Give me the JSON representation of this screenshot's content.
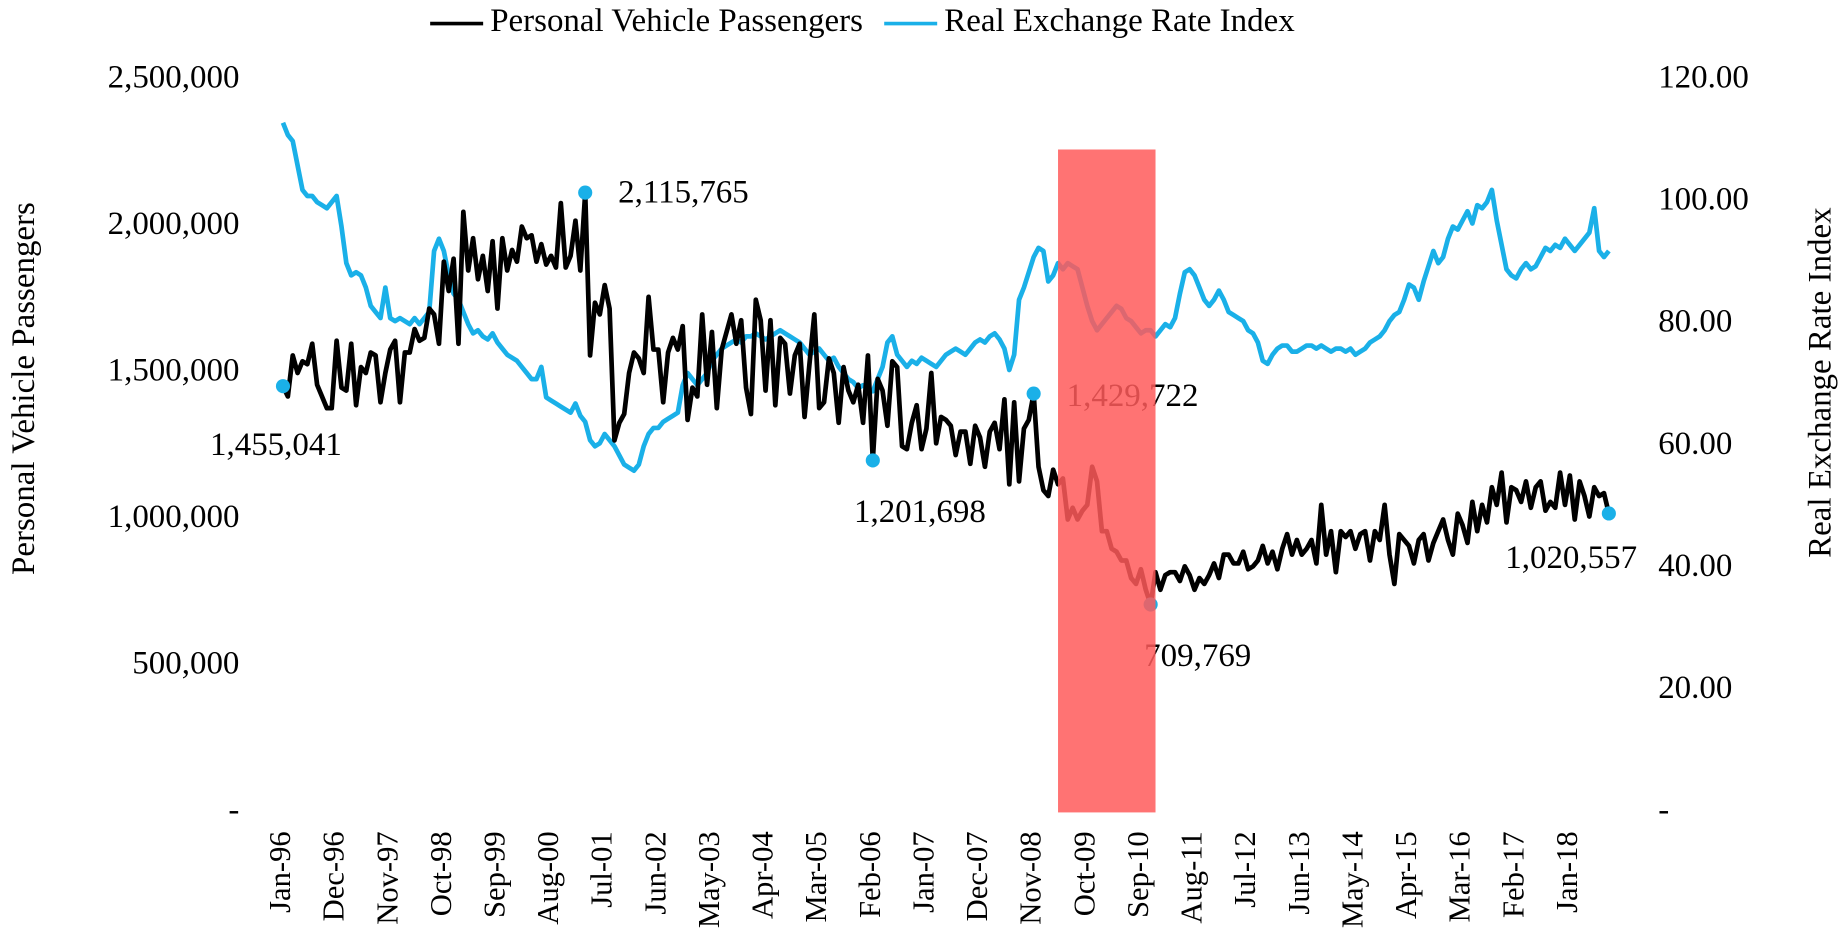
{
  "chart_data": {
    "type": "line",
    "legend": "top",
    "y_label": "Personal Vehicle Passengers",
    "y2_label": "Real Exchange Rate Index",
    "ylim": [
      0,
      2500000
    ],
    "yticks": [
      {
        "value": 0,
        "label": "-"
      },
      {
        "value": 500000,
        "label": "500,000"
      },
      {
        "value": 1000000,
        "label": "1,000,000"
      },
      {
        "value": 1500000,
        "label": "1,500,000"
      },
      {
        "value": 2000000,
        "label": "2,000,000"
      },
      {
        "value": 2500000,
        "label": "2,500,000"
      }
    ],
    "y2lim": [
      0,
      120
    ],
    "y2ticks": [
      {
        "value": 0,
        "label": "-"
      },
      {
        "value": 20,
        "label": "20.00"
      },
      {
        "value": 40,
        "label": "40.00"
      },
      {
        "value": 60,
        "label": "60.00"
      },
      {
        "value": 80,
        "label": "80.00"
      },
      {
        "value": 100,
        "label": "100.00"
      },
      {
        "value": 120,
        "label": "120.00"
      }
    ],
    "highlight": {
      "from": 159,
      "to": 179,
      "top": 2263000,
      "color": "#ff5a5a"
    },
    "categories": [
      "Jan-96",
      null,
      null,
      null,
      null,
      null,
      null,
      null,
      null,
      null,
      null,
      "Dec-96",
      null,
      null,
      null,
      null,
      null,
      null,
      null,
      null,
      null,
      null,
      "Nov-97",
      null,
      null,
      null,
      null,
      null,
      null,
      null,
      null,
      null,
      null,
      "Oct-98",
      null,
      null,
      null,
      null,
      null,
      null,
      null,
      null,
      null,
      null,
      "Sep-99",
      null,
      null,
      null,
      null,
      null,
      null,
      null,
      null,
      null,
      null,
      "Aug-00",
      null,
      null,
      null,
      null,
      null,
      null,
      null,
      null,
      null,
      null,
      "Jul-01",
      null,
      null,
      null,
      null,
      null,
      null,
      null,
      null,
      null,
      null,
      "Jun-02",
      null,
      null,
      null,
      null,
      null,
      null,
      null,
      null,
      null,
      null,
      "May-03",
      null,
      null,
      null,
      null,
      null,
      null,
      null,
      null,
      null,
      null,
      "Apr-04",
      null,
      null,
      null,
      null,
      null,
      null,
      null,
      null,
      null,
      null,
      "Mar-05",
      null,
      null,
      null,
      null,
      null,
      null,
      null,
      null,
      null,
      null,
      "Feb-06",
      null,
      null,
      null,
      null,
      null,
      null,
      null,
      null,
      null,
      null,
      "Jan-07",
      null,
      null,
      null,
      null,
      null,
      null,
      null,
      null,
      null,
      null,
      "Dec-07",
      null,
      null,
      null,
      null,
      null,
      null,
      null,
      null,
      null,
      null,
      "Nov-08",
      null,
      null,
      null,
      null,
      null,
      null,
      null,
      null,
      null,
      null,
      "Oct-09",
      null,
      null,
      null,
      null,
      null,
      null,
      null,
      null,
      null,
      null,
      "Sep-10",
      null,
      null,
      null,
      null,
      null,
      null,
      null,
      null,
      null,
      null,
      "Aug-11",
      null,
      null,
      null,
      null,
      null,
      null,
      null,
      null,
      null,
      null,
      "Jul-12",
      null,
      null,
      null,
      null,
      null,
      null,
      null,
      null,
      null,
      null,
      "Jun-13",
      null,
      null,
      null,
      null,
      null,
      null,
      null,
      null,
      null,
      null,
      "May-14",
      null,
      null,
      null,
      null,
      null,
      null,
      null,
      null,
      null,
      null,
      "Apr-15",
      null,
      null,
      null,
      null,
      null,
      null,
      null,
      null,
      null,
      null,
      "Mar-16",
      null,
      null,
      null,
      null,
      null,
      null,
      null,
      null,
      null,
      null,
      "Feb-17",
      null,
      null,
      null,
      null,
      null,
      null,
      null,
      null,
      null,
      null,
      "Jan-18",
      null,
      null,
      null,
      null,
      null,
      null,
      null,
      null
    ],
    "series": [
      {
        "name": "Personal Vehicle Passengers",
        "color": "#000000",
        "marker_color": "#1ab0e8",
        "axis": "y",
        "values": [
          1455041,
          1420000,
          1560000,
          1500000,
          1540000,
          1530000,
          1600000,
          1460000,
          1420000,
          1380000,
          1380000,
          1610000,
          1450000,
          1440000,
          1600000,
          1390000,
          1520000,
          1500000,
          1570000,
          1560000,
          1400000,
          1500000,
          1580000,
          1610000,
          1400000,
          1570000,
          1570000,
          1650000,
          1610000,
          1620000,
          1720000,
          1700000,
          1600000,
          1880000,
          1780000,
          1890000,
          1600000,
          2050000,
          1850000,
          1960000,
          1820000,
          1900000,
          1780000,
          1950000,
          1720000,
          1960000,
          1850000,
          1920000,
          1880000,
          2000000,
          1960000,
          1970000,
          1880000,
          1940000,
          1870000,
          1900000,
          1860000,
          2080000,
          1860000,
          1900000,
          2020000,
          1850000,
          2115765,
          1560000,
          1740000,
          1700000,
          1800000,
          1720000,
          1270000,
          1330000,
          1360000,
          1500000,
          1570000,
          1550000,
          1500000,
          1760000,
          1580000,
          1580000,
          1400000,
          1570000,
          1620000,
          1580000,
          1660000,
          1340000,
          1450000,
          1420000,
          1700000,
          1460000,
          1640000,
          1380000,
          1580000,
          1640000,
          1700000,
          1600000,
          1680000,
          1450000,
          1360000,
          1750000,
          1680000,
          1440000,
          1680000,
          1390000,
          1620000,
          1600000,
          1430000,
          1560000,
          1600000,
          1350000,
          1530000,
          1700000,
          1380000,
          1400000,
          1550000,
          1500000,
          1330000,
          1520000,
          1440000,
          1400000,
          1460000,
          1330000,
          1560000,
          1201698,
          1480000,
          1440000,
          1320000,
          1540000,
          1520000,
          1250000,
          1240000,
          1330000,
          1390000,
          1240000,
          1310000,
          1500000,
          1260000,
          1350000,
          1340000,
          1320000,
          1220000,
          1300000,
          1300000,
          1190000,
          1320000,
          1280000,
          1180000,
          1300000,
          1330000,
          1240000,
          1410000,
          1120000,
          1400000,
          1130000,
          1310000,
          1340000,
          1429722,
          1180000,
          1100000,
          1080000,
          1170000,
          1120000,
          1140000,
          1000000,
          1040000,
          1000000,
          1030000,
          1050000,
          1180000,
          1130000,
          960000,
          960000,
          900000,
          890000,
          860000,
          860000,
          800000,
          780000,
          830000,
          760000,
          709769,
          820000,
          760000,
          810000,
          820000,
          820000,
          790000,
          840000,
          810000,
          760000,
          800000,
          780000,
          810000,
          850000,
          800000,
          880000,
          880000,
          850000,
          850000,
          890000,
          830000,
          840000,
          860000,
          910000,
          850000,
          890000,
          830000,
          900000,
          950000,
          880000,
          930000,
          880000,
          900000,
          930000,
          850000,
          1050000,
          880000,
          960000,
          820000,
          960000,
          940000,
          960000,
          900000,
          950000,
          960000,
          860000,
          960000,
          930000,
          1050000,
          880000,
          780000,
          950000,
          930000,
          910000,
          850000,
          930000,
          950000,
          860000,
          920000,
          960000,
          1000000,
          930000,
          880000,
          1020000,
          980000,
          920000,
          1060000,
          960000,
          1050000,
          990000,
          1110000,
          1050000,
          1160000,
          990000,
          1110000,
          1100000,
          1060000,
          1130000,
          1040000,
          1110000,
          1130000,
          1030000,
          1060000,
          1040000,
          1160000,
          1050000,
          1150000,
          1000000,
          1130000,
          1080000,
          1010000,
          1110000,
          1080000,
          1090000,
          1020557
        ],
        "value_labels": [
          "1,455,041",
          null,
          null,
          null,
          null,
          null,
          null,
          null,
          null,
          null,
          null,
          null,
          null,
          null,
          null,
          null,
          null,
          null,
          null,
          null,
          null,
          null,
          null,
          null,
          null,
          null,
          null,
          null,
          null,
          null,
          null,
          null,
          null,
          null,
          null,
          null,
          null,
          null,
          null,
          null,
          null,
          null,
          null,
          null,
          null,
          null,
          null,
          null,
          null,
          null,
          null,
          null,
          null,
          null,
          null,
          null,
          null,
          null,
          null,
          null,
          null,
          null,
          "2,115,765",
          null,
          null,
          null,
          null,
          null,
          null,
          null,
          null,
          null,
          null,
          null,
          null,
          null,
          null,
          null,
          null,
          null,
          null,
          null,
          null,
          null,
          null,
          null,
          null,
          null,
          null,
          null,
          null,
          null,
          null,
          null,
          null,
          null,
          null,
          null,
          null,
          null,
          null,
          null,
          null,
          null,
          null,
          null,
          null,
          null,
          null,
          null,
          null,
          null,
          null,
          null,
          null,
          null,
          null,
          null,
          null,
          null,
          null,
          "1,201,698",
          null,
          null,
          null,
          null,
          null,
          null,
          null,
          null,
          null,
          null,
          null,
          null,
          null,
          null,
          null,
          null,
          null,
          null,
          null,
          null,
          null,
          null,
          null,
          null,
          null,
          null,
          null,
          null,
          null,
          null,
          null,
          null,
          "1,429,722",
          null,
          null,
          null,
          null,
          null,
          null,
          null,
          null,
          null,
          null,
          null,
          null,
          null,
          null,
          null,
          null,
          null,
          null,
          null,
          null,
          null,
          null,
          null,
          "709,769",
          null,
          null,
          null,
          null,
          null,
          null,
          null,
          null,
          null,
          null,
          null,
          null,
          null,
          null,
          null,
          null,
          null,
          null,
          null,
          null,
          null,
          null,
          null,
          null,
          null,
          null,
          null,
          null,
          null,
          null,
          null,
          null,
          null,
          null,
          null,
          null,
          null,
          null,
          null,
          null,
          null,
          null,
          null,
          null,
          null,
          null,
          null,
          null,
          null,
          null,
          null,
          null,
          null,
          null,
          null,
          null,
          null,
          null,
          null,
          null,
          null,
          null,
          null,
          null,
          null,
          null,
          null,
          null,
          null,
          null,
          null,
          null,
          null,
          null,
          null,
          null,
          null,
          null,
          null,
          null,
          null,
          null,
          null,
          null,
          null,
          null,
          null,
          null,
          null,
          null,
          null,
          null,
          null,
          "1,020,557"
        ]
      },
      {
        "name": "Real Exchange Rate Index",
        "color": "#1ab0e8",
        "axis": "y2",
        "values": [
          113,
          111,
          110,
          106,
          102,
          101,
          101,
          100,
          99.5,
          99,
          100,
          101,
          96,
          90,
          88,
          88.5,
          88,
          86,
          83,
          82,
          81,
          86,
          81,
          80.5,
          81,
          80.5,
          80,
          81,
          80,
          81,
          82,
          92,
          94,
          92,
          88,
          85,
          84,
          82,
          80,
          78.5,
          79,
          78,
          77.5,
          78.5,
          77,
          76,
          75,
          74.5,
          74,
          73,
          72,
          71,
          71,
          73,
          68,
          67.5,
          67,
          66.5,
          66,
          65.5,
          67,
          65,
          64,
          61,
          60,
          60.5,
          62,
          61,
          60,
          58.5,
          57,
          56.5,
          56,
          57,
          60,
          62,
          63,
          63,
          64,
          64.5,
          65,
          65.5,
          70,
          72,
          71,
          70,
          71,
          72,
          74,
          75,
          76,
          76.5,
          77,
          77.5,
          77,
          78,
          78,
          78.5,
          78,
          77.5,
          78,
          78.5,
          79,
          78.5,
          78,
          77.5,
          77,
          76,
          75,
          75.5,
          76,
          75,
          74,
          74.5,
          73,
          72,
          71,
          70.5,
          69.5,
          70,
          69.5,
          69,
          71,
          73,
          77,
          78,
          75,
          74,
          73,
          74,
          73.5,
          74.5,
          74,
          73.5,
          73,
          74,
          75,
          75.5,
          76,
          75.5,
          75,
          76,
          77,
          77.5,
          77,
          78,
          78.5,
          77.5,
          76,
          72.5,
          75,
          84,
          86,
          88.5,
          91,
          92.5,
          92,
          87,
          88,
          90,
          89,
          90,
          89.5,
          89,
          86,
          83,
          80.5,
          79,
          80,
          81,
          82,
          83,
          82.5,
          81,
          80.5,
          79.5,
          78.5,
          79,
          79,
          78,
          79,
          80,
          79.5,
          81,
          85,
          88.5,
          89,
          88,
          86,
          84,
          83,
          84,
          85.5,
          84,
          82,
          81.5,
          81,
          80.5,
          79,
          78.5,
          77,
          74,
          73.5,
          75,
          76,
          76.5,
          76.5,
          75.5,
          75.5,
          76,
          76.5,
          76.5,
          76,
          76.5,
          76,
          75.5,
          76,
          76,
          75.5,
          76,
          75,
          75.5,
          76,
          77,
          77.5,
          78,
          79,
          80.5,
          81.5,
          82,
          84,
          86.5,
          86,
          84,
          87,
          89.5,
          92,
          90,
          91,
          94,
          96,
          95.5,
          97,
          98.5,
          96.5,
          99.5,
          99,
          100,
          102,
          97,
          93,
          89,
          88,
          87.5,
          89,
          90,
          89,
          89.5,
          91,
          92.5,
          92,
          93,
          92.5,
          94,
          93,
          92,
          93,
          94,
          95,
          99,
          92,
          91,
          92
        ]
      }
    ]
  }
}
